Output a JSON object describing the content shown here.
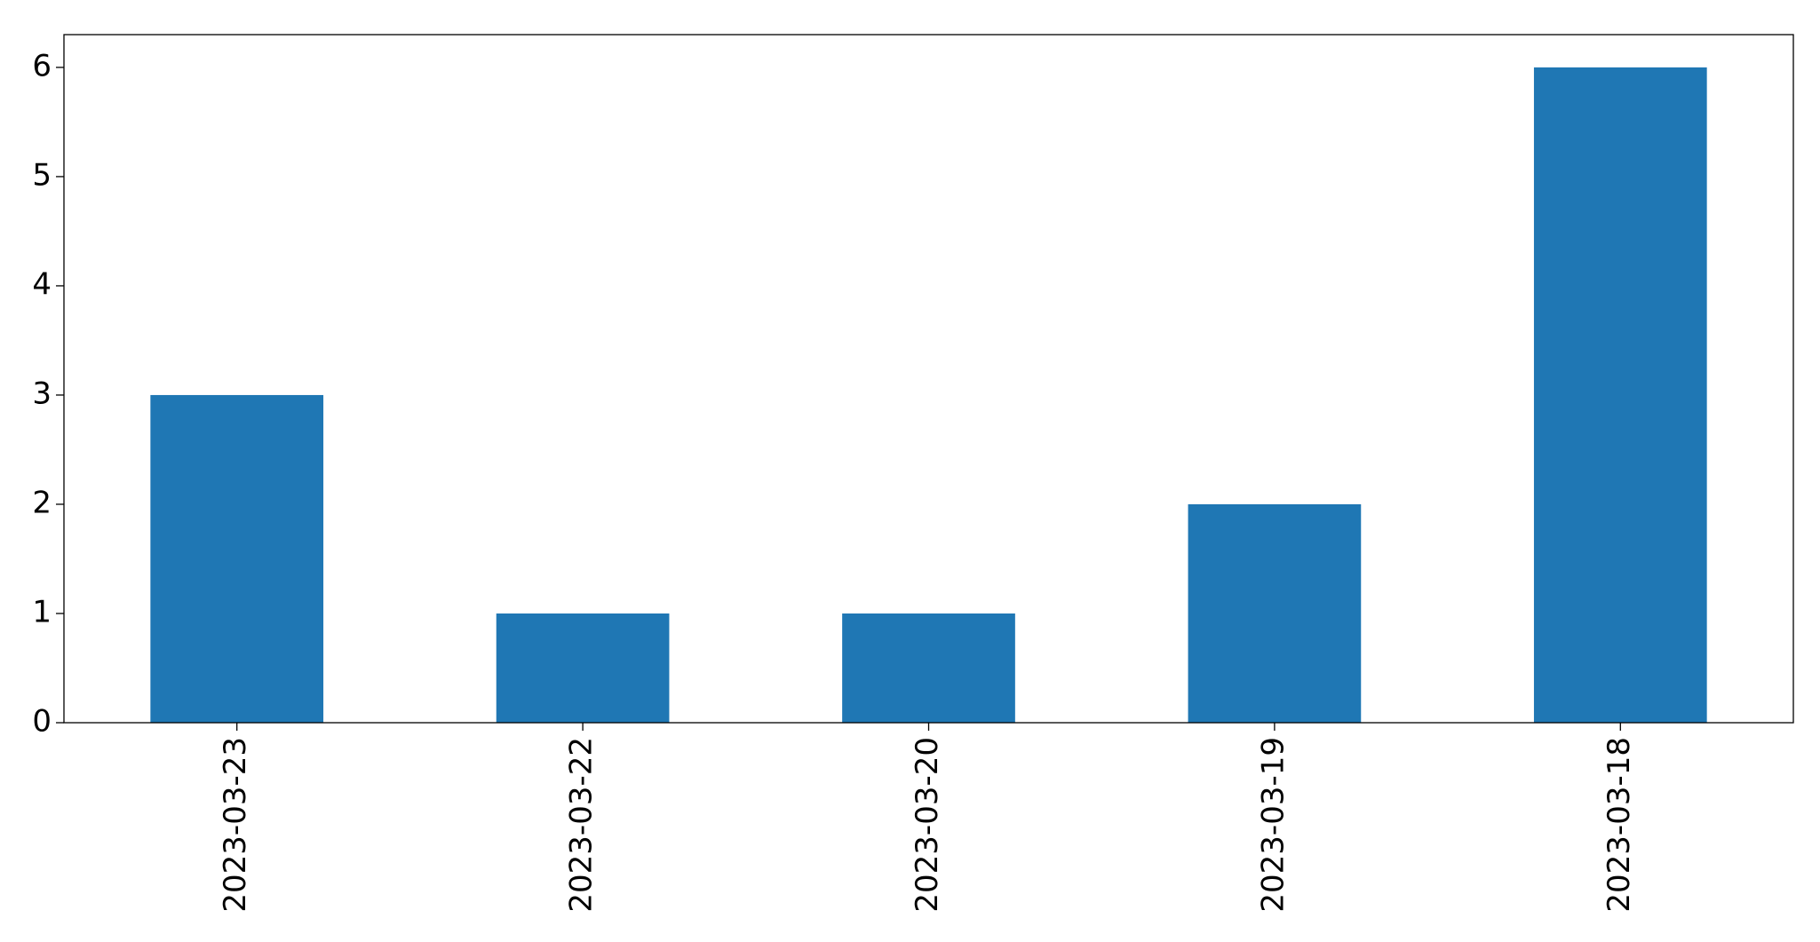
{
  "chart_data": {
    "type": "bar",
    "categories": [
      "2023-03-23",
      "2023-03-22",
      "2023-03-20",
      "2023-03-19",
      "2023-03-18"
    ],
    "values": [
      3,
      1,
      1,
      2,
      6
    ],
    "color": "#1f77b4",
    "ylim": [
      0,
      6.3
    ],
    "yticks": [
      0,
      1,
      2,
      3,
      4,
      5,
      6
    ]
  }
}
